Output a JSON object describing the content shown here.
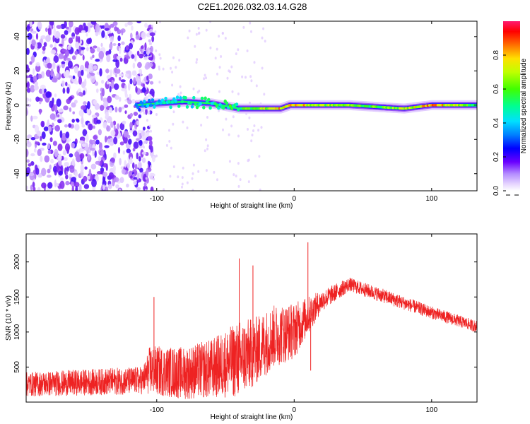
{
  "title": "C2E1.2026.032.03.14.G28",
  "chart_data": [
    {
      "type": "heatmap",
      "name": "spectrogram",
      "xlabel": "Height of straight line (km)",
      "ylabel": "Frequency (Hz)",
      "xlim": [
        -195,
        133
      ],
      "ylim": [
        -50,
        49
      ],
      "x_ticks": [
        -100,
        0,
        100
      ],
      "x_tick_labels": [
        "-100",
        "0",
        "100"
      ],
      "y_ticks": [
        -40,
        -20,
        0,
        20,
        40
      ],
      "y_tick_labels": [
        "-40",
        "-20",
        "0",
        "20",
        "40"
      ],
      "colorbar": {
        "label": "Normalized spectral amplitude",
        "range": [
          0,
          1
        ],
        "ticks": [
          0.0,
          0.2,
          0.4,
          0.6,
          0.8
        ],
        "tick_labels": [
          "0.0",
          "0.2",
          "0.4",
          "0.6",
          "0.8"
        ],
        "colors": [
          "#ffffff",
          "#d8b8ff",
          "#8a2be2",
          "#3a00ff",
          "#0050ff",
          "#00e0ff",
          "#00ff80",
          "#40ff00",
          "#ffff00",
          "#ff8000",
          "#ff0000",
          "#ff1a6a"
        ]
      },
      "ridge": [
        {
          "x": -115,
          "freq": 0,
          "amp": 0.35
        },
        {
          "x": -100,
          "freq": 1,
          "amp": 0.45
        },
        {
          "x": -80,
          "freq": 2,
          "amp": 0.5
        },
        {
          "x": -60,
          "freq": 1,
          "amp": 0.55
        },
        {
          "x": -40,
          "freq": -2,
          "amp": 0.6
        },
        {
          "x": -25,
          "freq": -2,
          "amp": 0.75
        },
        {
          "x": -10,
          "freq": -2,
          "amp": 0.85
        },
        {
          "x": -3,
          "freq": 0,
          "amp": 0.9
        },
        {
          "x": 3,
          "freq": 0,
          "amp": 0.9
        },
        {
          "x": 10,
          "freq": 0,
          "amp": 0.8
        },
        {
          "x": 20,
          "freq": 0,
          "amp": 0.75
        },
        {
          "x": 40,
          "freq": 0,
          "amp": 0.7
        },
        {
          "x": 60,
          "freq": -1,
          "amp": 0.65
        },
        {
          "x": 80,
          "freq": -2,
          "amp": 0.75
        },
        {
          "x": 100,
          "freq": 0,
          "amp": 0.95
        },
        {
          "x": 133,
          "freq": 0,
          "amp": 0.6
        }
      ],
      "noise_region_xmax": -110
    },
    {
      "type": "line",
      "name": "snr",
      "xlabel": "Height of straight line (km)",
      "ylabel": "SNR (10 * v/v)",
      "xlim": [
        -195,
        133
      ],
      "ylim": [
        0,
        2400
      ],
      "x_ticks": [
        -100,
        0,
        100
      ],
      "x_tick_labels": [
        "-100",
        "0",
        "100"
      ],
      "y_ticks": [
        500,
        1000,
        1500,
        2000
      ],
      "y_tick_labels": [
        "500",
        "1000",
        "1500",
        "2000"
      ],
      "color": "#ee2222",
      "envelope": [
        {
          "x": -195,
          "base": 200,
          "spread": 350
        },
        {
          "x": -110,
          "base": 250,
          "spread": 400
        },
        {
          "x": -105,
          "base": 350,
          "spread": 700
        },
        {
          "x": -80,
          "base": 300,
          "spread": 750
        },
        {
          "x": -60,
          "base": 350,
          "spread": 850
        },
        {
          "x": -40,
          "base": 450,
          "spread": 1100
        },
        {
          "x": -30,
          "base": 550,
          "spread": 1000
        },
        {
          "x": -15,
          "base": 800,
          "spread": 900
        },
        {
          "x": 0,
          "base": 900,
          "spread": 800
        },
        {
          "x": 20,
          "base": 1400,
          "spread": 300
        },
        {
          "x": 40,
          "base": 1650,
          "spread": 200
        },
        {
          "x": 70,
          "base": 1450,
          "spread": 200
        },
        {
          "x": 100,
          "base": 1250,
          "spread": 180
        },
        {
          "x": 133,
          "base": 1050,
          "spread": 170
        }
      ],
      "spikes": [
        {
          "x": -102,
          "y": 1500
        },
        {
          "x": -40,
          "y": 2050
        },
        {
          "x": -30,
          "y": 1950
        },
        {
          "x": 10,
          "y": 2280
        },
        {
          "x": 12,
          "y": 450
        }
      ]
    }
  ]
}
